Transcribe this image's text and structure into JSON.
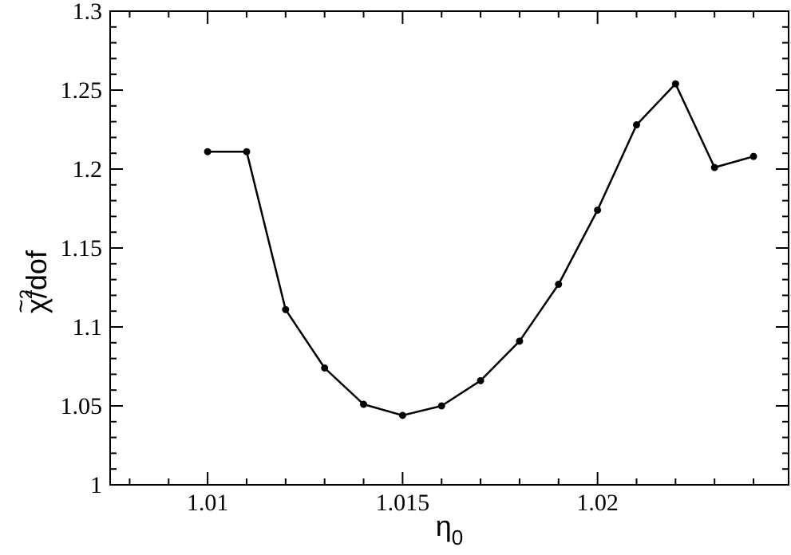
{
  "chart_data": {
    "type": "line",
    "xlabel": "η",
    "xlabel_subscript": "0",
    "ylabel_symbol": "χ",
    "ylabel_tilde": "~",
    "ylabel_superscript": "2",
    "ylabel_suffix": "/dof",
    "xlim": [
      1.0075,
      1.0249
    ],
    "ylim": [
      1.0,
      1.3
    ],
    "x_ticks": [
      1.01,
      1.015,
      1.02
    ],
    "x_tick_labels": [
      "1.01",
      "1.015",
      "1.02"
    ],
    "x_minor_step": 0.001,
    "y_ticks": [
      1.0,
      1.05,
      1.1,
      1.15,
      1.2,
      1.25,
      1.3
    ],
    "y_tick_labels": [
      "1",
      "1.05",
      "1.1",
      "1.15",
      "1.2",
      "1.25",
      "1.3"
    ],
    "y_minor_step": 0.01,
    "grid": false,
    "series": [
      {
        "color": "#000000",
        "marker": "circle",
        "x": [
          1.01,
          1.011,
          1.012,
          1.013,
          1.014,
          1.015,
          1.016,
          1.017,
          1.018,
          1.019,
          1.02,
          1.021,
          1.022,
          1.023,
          1.024
        ],
        "y": [
          1.211,
          1.211,
          1.111,
          1.074,
          1.051,
          1.044,
          1.05,
          1.066,
          1.091,
          1.127,
          1.174,
          1.228,
          1.254,
          1.201,
          1.208
        ]
      }
    ]
  }
}
